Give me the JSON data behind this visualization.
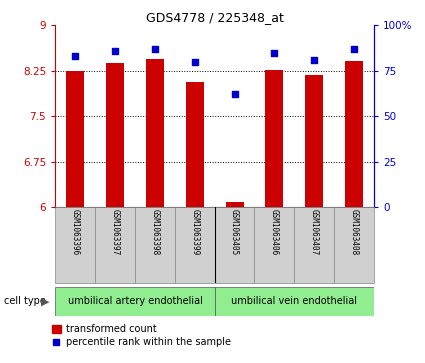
{
  "title": "GDS4778 / 225348_at",
  "samples": [
    "GSM1063396",
    "GSM1063397",
    "GSM1063398",
    "GSM1063399",
    "GSM1063405",
    "GSM1063406",
    "GSM1063407",
    "GSM1063408"
  ],
  "transformed_count": [
    8.25,
    8.38,
    8.45,
    8.07,
    6.08,
    8.27,
    8.18,
    8.42
  ],
  "percentile_rank": [
    83,
    86,
    87,
    80,
    62,
    85,
    81,
    87
  ],
  "ylim_left": [
    6,
    9
  ],
  "ylim_right": [
    0,
    100
  ],
  "yticks_left": [
    6,
    6.75,
    7.5,
    8.25,
    9
  ],
  "yticks_right": [
    0,
    25,
    50,
    75,
    100
  ],
  "ytick_labels_left": [
    "6",
    "6.75",
    "7.5",
    "8.25",
    "9"
  ],
  "ytick_labels_right": [
    "0",
    "25",
    "50",
    "75",
    "100%"
  ],
  "group1_label": "umbilical artery endothelial",
  "group2_label": "umbilical vein endothelial",
  "group1_count": 4,
  "group2_count": 4,
  "bar_color": "#cc0000",
  "dot_color": "#0000cc",
  "bar_width": 0.45,
  "left_axis_color": "#cc0000",
  "right_axis_color": "#0000cc",
  "label_box_color": "#d0d0d0",
  "celltype_box_color": "#90ee90",
  "legend_red_label": "transformed count",
  "legend_blue_label": "percentile rank within the sample"
}
